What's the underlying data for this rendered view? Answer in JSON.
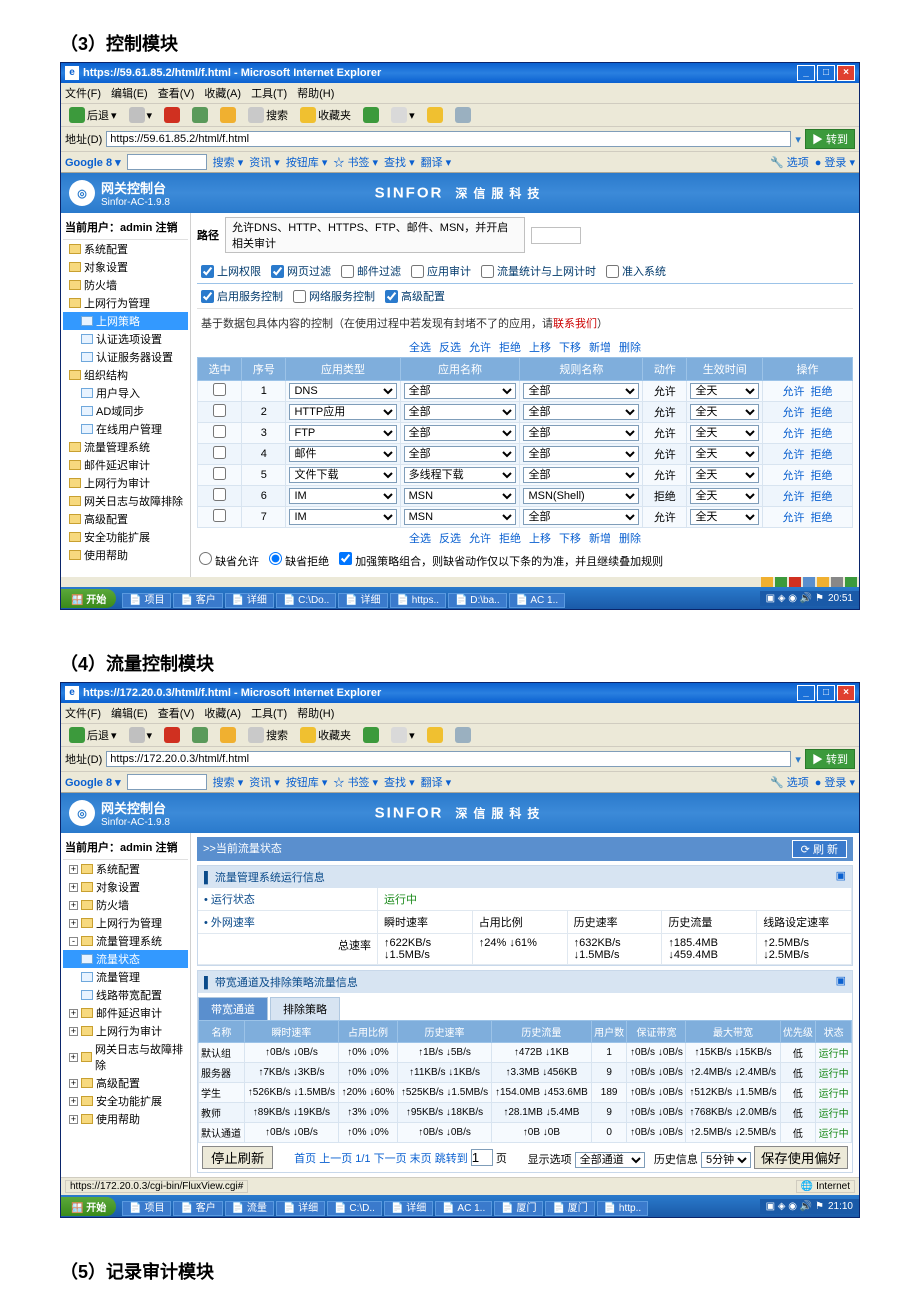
{
  "sections": {
    "s3": "（3）控制模块",
    "s4": "（4）流量控制模块",
    "s5": "（5）记录审计模块"
  },
  "frame3": {
    "title": "https://59.61.85.2/html/f.html - Microsoft Internet Explorer",
    "menus": [
      "文件(F)",
      "编辑(E)",
      "查看(V)",
      "收藏(A)",
      "工具(T)",
      "帮助(H)"
    ],
    "toolbar": {
      "back": "后退",
      "search": "搜索",
      "fav": "收藏夹"
    },
    "addr_label": "地址(D)",
    "addr_value": "https://59.61.85.2/html/f.html",
    "go": "转到",
    "google": {
      "logo": "Google",
      "tail": "8 ▾",
      "items": [
        "搜索 ▾",
        "资讯 ▾",
        "按钮库 ▾",
        "☆ 书签 ▾",
        "查找 ▾",
        "翻译 ▾"
      ],
      "opts": "选项",
      "login": "登录 ▾"
    },
    "banner": {
      "prod": "网关控制台",
      "ver": "Sinfor-AC-1.9.8",
      "brand1": "SINFOR",
      "brand2": "深信服科技"
    },
    "side": {
      "cu": "当前用户：admin 注销",
      "items": [
        {
          "txt": "系统配置",
          "cls": "tree-item",
          "ico": "tree-ico"
        },
        {
          "txt": "对象设置",
          "cls": "tree-item",
          "ico": "tree-ico"
        },
        {
          "txt": "防火墙",
          "cls": "tree-item",
          "ico": "tree-ico"
        },
        {
          "txt": "上网行为管理",
          "cls": "tree-item",
          "ico": "tree-ico"
        },
        {
          "txt": "上网策略",
          "cls": "tree-item sub sel",
          "ico": "tree-ico page"
        },
        {
          "txt": "认证选项设置",
          "cls": "tree-item sub",
          "ico": "tree-ico page"
        },
        {
          "txt": "认证服务器设置",
          "cls": "tree-item sub",
          "ico": "tree-ico page"
        },
        {
          "txt": "组织结构",
          "cls": "tree-item",
          "ico": "tree-ico"
        },
        {
          "txt": "用户导入",
          "cls": "tree-item sub",
          "ico": "tree-ico page"
        },
        {
          "txt": "AD域同步",
          "cls": "tree-item sub",
          "ico": "tree-ico page"
        },
        {
          "txt": "在线用户管理",
          "cls": "tree-item sub",
          "ico": "tree-ico page"
        },
        {
          "txt": "流量管理系统",
          "cls": "tree-item",
          "ico": "tree-ico"
        },
        {
          "txt": "邮件延迟审计",
          "cls": "tree-item",
          "ico": "tree-ico"
        },
        {
          "txt": "上网行为审计",
          "cls": "tree-item",
          "ico": "tree-ico"
        },
        {
          "txt": "网关日志与故障排除",
          "cls": "tree-item",
          "ico": "tree-ico"
        },
        {
          "txt": "高级配置",
          "cls": "tree-item",
          "ico": "tree-ico"
        },
        {
          "txt": "安全功能扩展",
          "cls": "tree-item",
          "ico": "tree-ico"
        },
        {
          "txt": "使用帮助",
          "cls": "tree-item",
          "ico": "tree-ico"
        }
      ]
    },
    "content": {
      "path_label": "路径",
      "path_text": "允许DNS、HTTP、HTTPS、FTP、邮件、MSN，并开启相关审计",
      "tab_row": [
        "上网权限",
        "网页过滤",
        "邮件过滤",
        "应用审计",
        "流量统计与上网计时",
        "准入系统"
      ],
      "tab_checked": [
        true,
        true,
        false,
        false,
        false,
        false
      ],
      "sub_row": [
        "启用服务控制",
        "网络服务控制",
        "高级配置"
      ],
      "sub_checked": [
        true,
        false,
        true
      ],
      "note_a": "基于数据包具体内容的控制（在使用过程中若发现有封堵不了的应用，请",
      "note_b": "联系我们",
      "note_c": "）",
      "top_links": [
        "全选",
        "反选",
        "允许",
        "拒绝",
        "上移",
        "下移",
        "新增",
        "删除"
      ],
      "grid_headers": [
        "选中",
        "序号",
        "应用类型",
        "应用名称",
        "规则名称",
        "动作",
        "生效时间",
        "操作"
      ],
      "rows": [
        {
          "i": 1,
          "type": "DNS",
          "name": "全部",
          "rule": "全部",
          "act": "允许",
          "time": "全天"
        },
        {
          "i": 2,
          "type": "HTTP应用",
          "name": "全部",
          "rule": "全部",
          "act": "允许",
          "time": "全天"
        },
        {
          "i": 3,
          "type": "FTP",
          "name": "全部",
          "rule": "全部",
          "act": "允许",
          "time": "全天"
        },
        {
          "i": 4,
          "type": "邮件",
          "name": "全部",
          "rule": "全部",
          "act": "允许",
          "time": "全天"
        },
        {
          "i": 5,
          "type": "文件下载",
          "name": "多线程下载",
          "rule": "全部",
          "act": "允许",
          "time": "全天"
        },
        {
          "i": 6,
          "type": "IM",
          "name": "MSN",
          "rule": "MSN(Shell)",
          "act": "拒绝",
          "time": "全天"
        },
        {
          "i": 7,
          "type": "IM",
          "name": "MSN",
          "rule": "全部",
          "act": "允许",
          "time": "全天"
        }
      ],
      "op_allow": "允许",
      "op_deny": "拒绝",
      "foot_radio_a": "缺省允许",
      "foot_radio_b": "缺省拒绝",
      "foot_chk": "加强策略组合，则缺省动作仅以下条的为准，并且继续叠加规则"
    },
    "taskbar": {
      "start": "开始",
      "btns": [
        "项目",
        "客户",
        "详细",
        "C:\\Do..",
        "详细",
        "https..",
        "D:\\ba..",
        "AC 1.."
      ],
      "clock": "20:51"
    }
  },
  "frame4": {
    "title": "https://172.20.0.3/html/f.html - Microsoft Internet Explorer",
    "addr_value": "https://172.20.0.3/html/f.html",
    "side": {
      "cu": "当前用户：admin 注销",
      "items": [
        {
          "txt": "系统配置",
          "cls": "tree-item",
          "plus": "+",
          "ico": "tree-ico"
        },
        {
          "txt": "对象设置",
          "cls": "tree-item",
          "plus": "+",
          "ico": "tree-ico"
        },
        {
          "txt": "防火墙",
          "cls": "tree-item",
          "plus": "+",
          "ico": "tree-ico"
        },
        {
          "txt": "上网行为管理",
          "cls": "tree-item",
          "plus": "+",
          "ico": "tree-ico"
        },
        {
          "txt": "流量管理系统",
          "cls": "tree-item",
          "plus": "-",
          "ico": "tree-ico"
        },
        {
          "txt": "流量状态",
          "cls": "tree-item sub sel",
          "ico": "tree-ico page"
        },
        {
          "txt": "流量管理",
          "cls": "tree-item sub",
          "ico": "tree-ico page"
        },
        {
          "txt": "线路带宽配置",
          "cls": "tree-item sub",
          "ico": "tree-ico page"
        },
        {
          "txt": "邮件延迟审计",
          "cls": "tree-item",
          "plus": "+",
          "ico": "tree-ico"
        },
        {
          "txt": "上网行为审计",
          "cls": "tree-item",
          "plus": "+",
          "ico": "tree-ico"
        },
        {
          "txt": "网关日志与故障排除",
          "cls": "tree-item",
          "plus": "+",
          "ico": "tree-ico"
        },
        {
          "txt": "高级配置",
          "cls": "tree-item",
          "plus": "+",
          "ico": "tree-ico"
        },
        {
          "txt": "安全功能扩展",
          "cls": "tree-item",
          "plus": "+",
          "ico": "tree-ico"
        },
        {
          "txt": "使用帮助",
          "cls": "tree-item",
          "plus": "+",
          "ico": "tree-ico"
        }
      ]
    },
    "content": {
      "section_title": ">>当前流量状态",
      "refresh_btn": "刷 新",
      "panel1_title": "▌ 流量管理系统运行信息",
      "run_state_k": "• 运行状态",
      "run_state_v": "运行中",
      "ext_rate_k": "• 外网速率",
      "labels": [
        "瞬时速率",
        "占用比例",
        "历史速率",
        "历史流量",
        "线路设定速率"
      ],
      "total_k": "总速率",
      "total_vals": [
        "↑622KB/s ↓1.5MB/s",
        "↑24% ↓61%",
        "↑632KB/s ↓1.5MB/s",
        "↑185.4MB ↓459.4MB",
        "↑2.5MB/s ↓2.5MB/s"
      ],
      "panel2_title": "▌ 带宽通道及排除策略流量信息",
      "tabs": [
        "带宽通道",
        "排除策略"
      ],
      "grid_headers": [
        "名称",
        "瞬时速率",
        "占用比例",
        "历史速率",
        "历史流量",
        "用户数",
        "保证带宽",
        "最大带宽",
        "优先级",
        "状态"
      ],
      "rows": [
        {
          "n": "默认组",
          "r1": "↑0B/s ↓0B/s",
          "r2": "↑0% ↓0%",
          "r3": "↑1B/s ↓5B/s",
          "r4": "↑472B ↓1KB",
          "u": "1",
          "g": "↑0B/s ↓0B/s",
          "m": "↑15KB/s ↓15KB/s",
          "p": "低",
          "s": "运行中"
        },
        {
          "n": "服务器",
          "r1": "↑7KB/s ↓3KB/s",
          "r2": "↑0% ↓0%",
          "r3": "↑11KB/s ↓1KB/s",
          "r4": "↑3.3MB ↓456KB",
          "u": "9",
          "g": "↑0B/s ↓0B/s",
          "m": "↑2.4MB/s ↓2.4MB/s",
          "p": "低",
          "s": "运行中"
        },
        {
          "n": "学生",
          "r1": "↑526KB/s ↓1.5MB/s",
          "r2": "↑20% ↓60%",
          "r3": "↑525KB/s ↓1.5MB/s",
          "r4": "↑154.0MB ↓453.6MB",
          "u": "189",
          "g": "↑0B/s ↓0B/s",
          "m": "↑512KB/s ↓1.5MB/s",
          "p": "低",
          "s": "运行中"
        },
        {
          "n": "教师",
          "r1": "↑89KB/s ↓19KB/s",
          "r2": "↑3% ↓0%",
          "r3": "↑95KB/s ↓18KB/s",
          "r4": "↑28.1MB ↓5.4MB",
          "u": "9",
          "g": "↑0B/s ↓0B/s",
          "m": "↑768KB/s ↓2.0MB/s",
          "p": "低",
          "s": "运行中"
        },
        {
          "n": "默认通道",
          "r1": "↑0B/s ↓0B/s",
          "r2": "↑0% ↓0%",
          "r3": "↑0B/s ↓0B/s",
          "r4": "↑0B ↓0B",
          "u": "0",
          "g": "↑0B/s ↓0B/s",
          "m": "↑2.5MB/s ↓2.5MB/s",
          "p": "低",
          "s": "运行中"
        }
      ],
      "stop_btn": "停止刷新",
      "pager": "首页 上一页 1/1 下一页 末页 跳转到",
      "pager_page": "1",
      "pager_go": "页",
      "show_opt_lbl": "显示选项",
      "show_opt_val": "全部通道",
      "hist_lbl": "历史信息",
      "hist_val": "5分钟",
      "save_btn": "保存使用偏好"
    },
    "status_url": "https://172.20.0.3/cgi-bin/FluxView.cgi#",
    "status_net": "Internet",
    "taskbar": {
      "start": "开始",
      "btns": [
        "项目",
        "客户",
        "流量",
        "详细",
        "C:\\D..",
        "详细",
        "AC 1..",
        "厦门",
        "厦门",
        "http.."
      ],
      "clock": "21:10"
    }
  }
}
